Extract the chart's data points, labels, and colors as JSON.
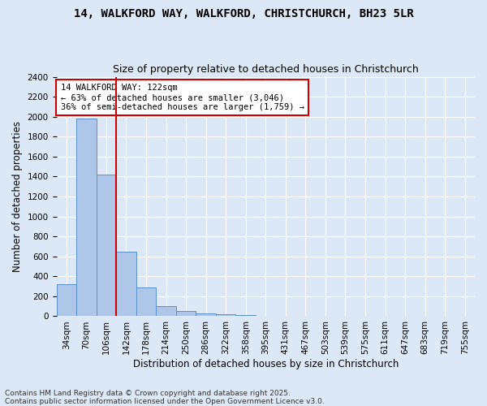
{
  "title_line1": "14, WALKFORD WAY, WALKFORD, CHRISTCHURCH, BH23 5LR",
  "title_line2": "Size of property relative to detached houses in Christchurch",
  "xlabel": "Distribution of detached houses by size in Christchurch",
  "ylabel": "Number of detached properties",
  "bar_color": "#aec6e8",
  "bar_edge_color": "#5b8fc9",
  "categories": [
    "34sqm",
    "70sqm",
    "106sqm",
    "142sqm",
    "178sqm",
    "214sqm",
    "250sqm",
    "286sqm",
    "322sqm",
    "358sqm",
    "395sqm",
    "431sqm",
    "467sqm",
    "503sqm",
    "539sqm",
    "575sqm",
    "611sqm",
    "647sqm",
    "683sqm",
    "719sqm",
    "755sqm"
  ],
  "values": [
    325,
    1980,
    1420,
    650,
    285,
    105,
    50,
    30,
    20,
    10,
    5,
    5,
    3,
    3,
    2,
    2,
    2,
    2,
    2,
    2,
    2
  ],
  "ylim": [
    0,
    2400
  ],
  "yticks": [
    0,
    200,
    400,
    600,
    800,
    1000,
    1200,
    1400,
    1600,
    1800,
    2000,
    2200,
    2400
  ],
  "property_line_x": 2.5,
  "annotation_text": "14 WALKFORD WAY: 122sqm\n← 63% of detached houses are smaller (3,046)\n36% of semi-detached houses are larger (1,759) →",
  "annotation_box_color": "#ffffff",
  "annotation_box_edge_color": "#cc0000",
  "red_line_color": "#cc0000",
  "background_color": "#dce8f5",
  "plot_background": "#dce8f5",
  "footer_line1": "Contains HM Land Registry data © Crown copyright and database right 2025.",
  "footer_line2": "Contains public sector information licensed under the Open Government Licence v3.0.",
  "title_fontsize": 10,
  "subtitle_fontsize": 9,
  "axis_label_fontsize": 8.5,
  "tick_fontsize": 7.5,
  "annotation_fontsize": 7.5,
  "footer_fontsize": 6.5
}
